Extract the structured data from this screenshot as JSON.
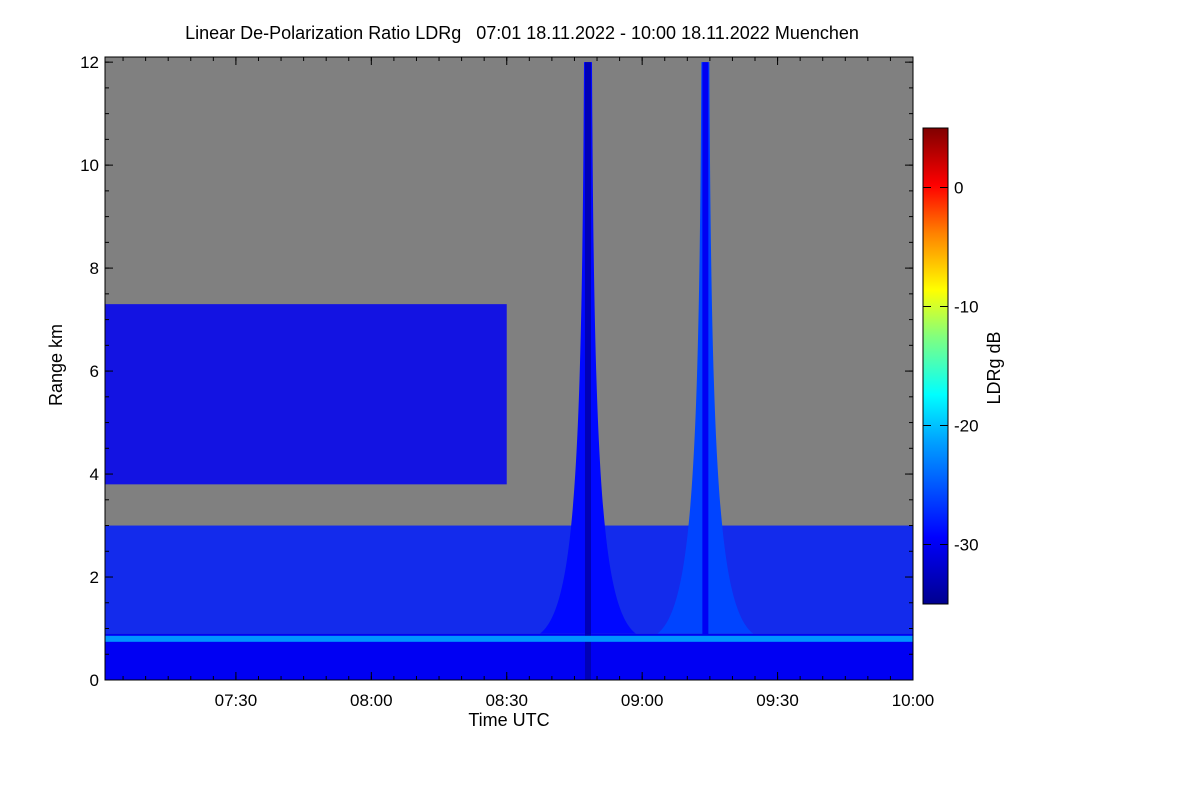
{
  "chart_data": {
    "type": "heatmap",
    "title": "Linear De-Polarization Ratio LDRg   07:01 18.11.2022 - 10:00 18.11.2022 Muenchen",
    "xlabel": "Time UTC",
    "ylabel": "Range km",
    "x_range": [
      "07:01",
      "10:00"
    ],
    "y_range": [
      0,
      12.1
    ],
    "x_ticks": [
      {
        "label": "07:30",
        "minutes": 450
      },
      {
        "label": "08:00",
        "minutes": 480
      },
      {
        "label": "08:30",
        "minutes": 510
      },
      {
        "label": "09:00",
        "minutes": 540
      },
      {
        "label": "09:30",
        "minutes": 570
      },
      {
        "label": "10:00",
        "minutes": 600
      }
    ],
    "x_start_minutes": 421,
    "x_end_minutes": 600,
    "y_ticks": [
      0,
      2,
      4,
      6,
      8,
      10,
      12
    ],
    "no_data_color": "#808080",
    "colorbar": {
      "label": "LDRg dB",
      "range": [
        -35,
        5
      ],
      "ticks": [
        0,
        -10,
        -20,
        -30
      ],
      "colormap": [
        "#00008f",
        "#0000ff",
        "#00ffff",
        "#ffff00",
        "#ff0000",
        "#800000"
      ]
    },
    "features": [
      {
        "type": "boundary_layer",
        "range_km": [
          0,
          0.9
        ],
        "ldr_db": -30
      },
      {
        "type": "melting_layer",
        "height_km": 0.8,
        "ldr_db": -22
      },
      {
        "type": "cloud",
        "time": [
          "07:01",
          "08:30"
        ],
        "range_km": [
          3.8,
          7.3
        ],
        "ldr_db": -30
      },
      {
        "type": "cloud",
        "time": [
          "07:01",
          "10:00"
        ],
        "range_km": [
          0.9,
          3.0
        ],
        "ldr_db": -28
      },
      {
        "type": "vertical_streak",
        "time": "08:48",
        "range_km": [
          0,
          12
        ],
        "ldr_db": -33
      },
      {
        "type": "vertical_streak",
        "time": "09:14",
        "range_km": [
          0,
          12
        ],
        "ldr_db": -30
      }
    ]
  }
}
